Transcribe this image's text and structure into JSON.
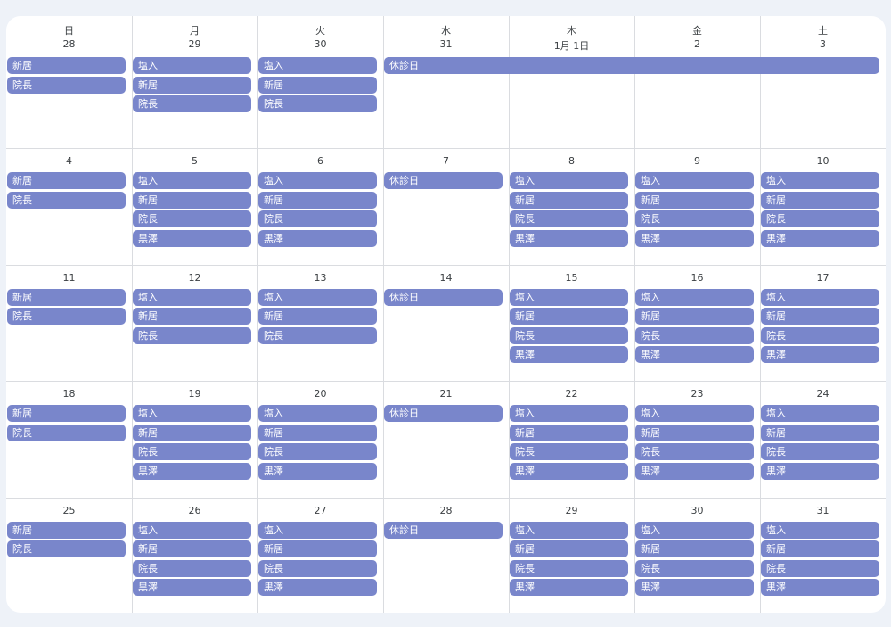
{
  "weekdays": [
    "日",
    "月",
    "火",
    "水",
    "木",
    "金",
    "土"
  ],
  "event_color": "#7986cb",
  "weeks": [
    {
      "dates": [
        "28",
        "29",
        "30",
        "31",
        "1月 1日",
        "2",
        "3"
      ],
      "events": [
        [
          "新居",
          "院長"
        ],
        [
          "塩入",
          "新居",
          "院長"
        ],
        [
          "塩入",
          "新居",
          "院長"
        ],
        [],
        [],
        [],
        []
      ],
      "spanning": [
        {
          "label": "休診日",
          "start_col": 3,
          "end_col": 6
        }
      ]
    },
    {
      "dates": [
        "4",
        "5",
        "6",
        "7",
        "8",
        "9",
        "10"
      ],
      "events": [
        [
          "新居",
          "院長"
        ],
        [
          "塩入",
          "新居",
          "院長",
          "黒澤"
        ],
        [
          "塩入",
          "新居",
          "院長",
          "黒澤"
        ],
        [
          "休診日"
        ],
        [
          "塩入",
          "新居",
          "院長",
          "黒澤"
        ],
        [
          "塩入",
          "新居",
          "院長",
          "黒澤"
        ],
        [
          "塩入",
          "新居",
          "院長",
          "黒澤"
        ]
      ]
    },
    {
      "dates": [
        "11",
        "12",
        "13",
        "14",
        "15",
        "16",
        "17"
      ],
      "events": [
        [
          "新居",
          "院長"
        ],
        [
          "塩入",
          "新居",
          "院長"
        ],
        [
          "塩入",
          "新居",
          "院長"
        ],
        [
          "休診日"
        ],
        [
          "塩入",
          "新居",
          "院長",
          "黒澤"
        ],
        [
          "塩入",
          "新居",
          "院長",
          "黒澤"
        ],
        [
          "塩入",
          "新居",
          "院長",
          "黒澤"
        ]
      ]
    },
    {
      "dates": [
        "18",
        "19",
        "20",
        "21",
        "22",
        "23",
        "24"
      ],
      "events": [
        [
          "新居",
          "院長"
        ],
        [
          "塩入",
          "新居",
          "院長",
          "黒澤"
        ],
        [
          "塩入",
          "新居",
          "院長",
          "黒澤"
        ],
        [
          "休診日"
        ],
        [
          "塩入",
          "新居",
          "院長",
          "黒澤"
        ],
        [
          "塩入",
          "新居",
          "院長",
          "黒澤"
        ],
        [
          "塩入",
          "新居",
          "院長",
          "黒澤"
        ]
      ]
    },
    {
      "dates": [
        "25",
        "26",
        "27",
        "28",
        "29",
        "30",
        "31"
      ],
      "events": [
        [
          "新居",
          "院長"
        ],
        [
          "塩入",
          "新居",
          "院長",
          "黒澤"
        ],
        [
          "塩入",
          "新居",
          "院長",
          "黒澤"
        ],
        [
          "休診日"
        ],
        [
          "塩入",
          "新居",
          "院長",
          "黒澤"
        ],
        [
          "塩入",
          "新居",
          "院長",
          "黒澤"
        ],
        [
          "塩入",
          "新居",
          "院長",
          "黒澤"
        ]
      ]
    }
  ]
}
